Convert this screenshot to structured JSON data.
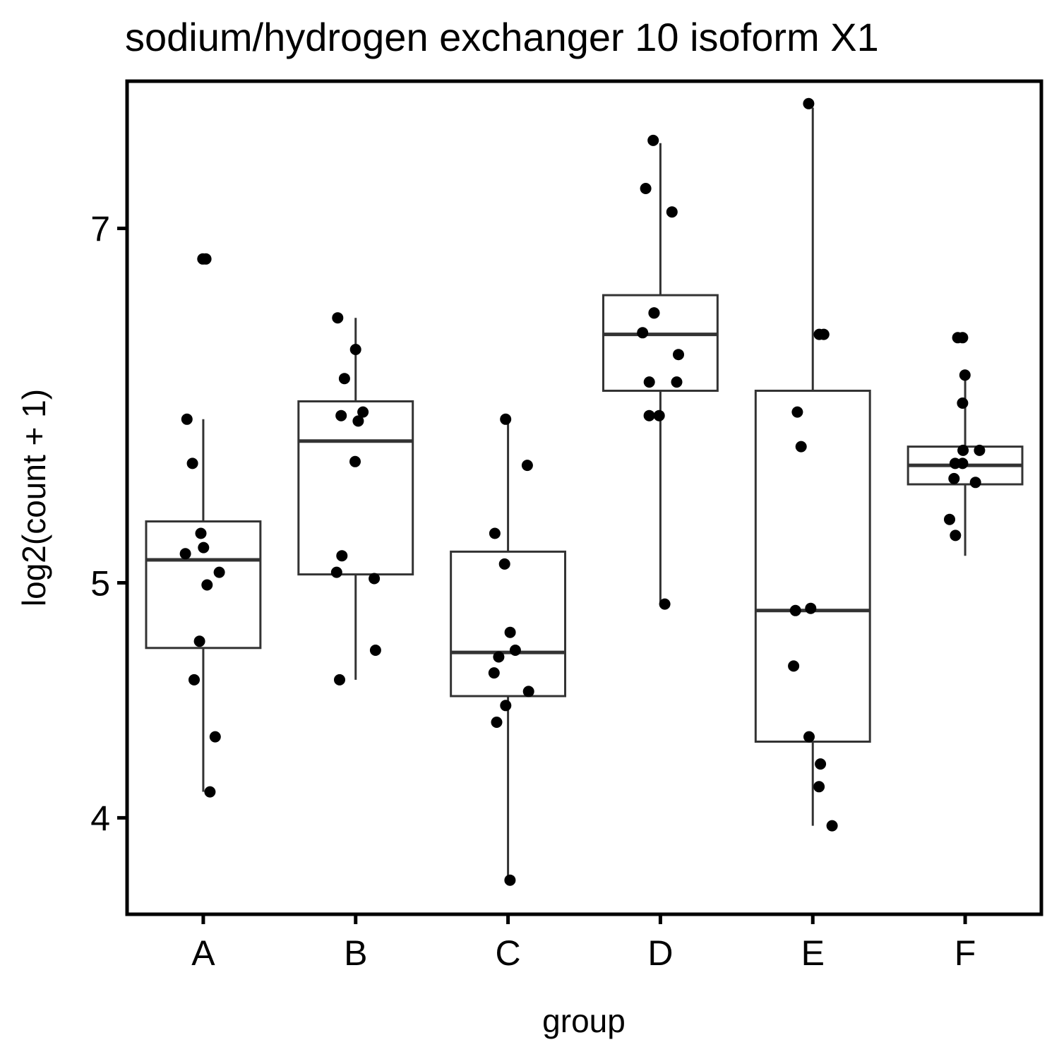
{
  "chart_data": {
    "type": "boxplot",
    "title": "sodium/hydrogen exchanger 10 isoform X1",
    "xlabel": "group",
    "ylabel": "log2(count + 1)",
    "y_scale": "log",
    "ylim": [
      3.65,
      8.05
    ],
    "yticks": [
      4,
      5,
      7
    ],
    "categories": [
      "A",
      "B",
      "C",
      "D",
      "E",
      "F"
    ],
    "grid": false,
    "legend": "none",
    "colors": {
      "box_stroke": "#333333",
      "point": "#000000",
      "frame": "#000000"
    },
    "boxes": [
      {
        "group": "A",
        "whisker_low": 4.1,
        "q1": 4.7,
        "median": 5.11,
        "q3": 5.3,
        "whisker_high": 5.84
      },
      {
        "group": "B",
        "whisker_low": 4.56,
        "q1": 5.04,
        "median": 5.72,
        "q3": 5.94,
        "whisker_high": 6.43
      },
      {
        "group": "C",
        "whisker_low": 3.77,
        "q1": 4.49,
        "median": 4.68,
        "q3": 5.15,
        "whisker_high": 5.84
      },
      {
        "group": "D",
        "whisker_low": 4.9,
        "q1": 6.0,
        "median": 6.33,
        "q3": 6.57,
        "whisker_high": 7.59
      },
      {
        "group": "E",
        "whisker_low": 3.97,
        "q1": 4.3,
        "median": 4.87,
        "q3": 6.0,
        "whisker_high": 7.85
      },
      {
        "group": "F",
        "whisker_low": 5.13,
        "q1": 5.49,
        "median": 5.59,
        "q3": 5.69,
        "whisker_high": 6.08
      }
    ],
    "points": [
      {
        "group": "A",
        "values": [
          6.8,
          6.8,
          5.84,
          5.6,
          5.24,
          5.17,
          5.14,
          5.05,
          4.99,
          4.73,
          4.56,
          4.32,
          4.1
        ]
      },
      {
        "group": "B",
        "values": [
          6.43,
          6.24,
          6.07,
          5.88,
          5.86,
          5.83,
          5.61,
          5.13,
          5.05,
          5.02,
          4.69,
          4.56
        ]
      },
      {
        "group": "C",
        "values": [
          5.84,
          5.59,
          5.24,
          5.09,
          4.77,
          4.69,
          4.66,
          4.59,
          4.51,
          4.45,
          4.38,
          3.77
        ]
      },
      {
        "group": "D",
        "values": [
          7.61,
          7.27,
          7.11,
          6.46,
          6.46,
          6.34,
          6.21,
          6.05,
          6.05,
          5.86,
          5.86,
          4.9
        ]
      },
      {
        "group": "E",
        "values": [
          7.88,
          6.33,
          6.33,
          5.88,
          5.69,
          4.88,
          4.87,
          4.62,
          4.32,
          4.21,
          4.12,
          3.97
        ]
      },
      {
        "group": "F",
        "values": [
          6.31,
          6.31,
          6.09,
          5.93,
          5.67,
          5.67,
          5.6,
          5.6,
          5.52,
          5.5,
          5.31,
          5.23
        ]
      }
    ]
  }
}
